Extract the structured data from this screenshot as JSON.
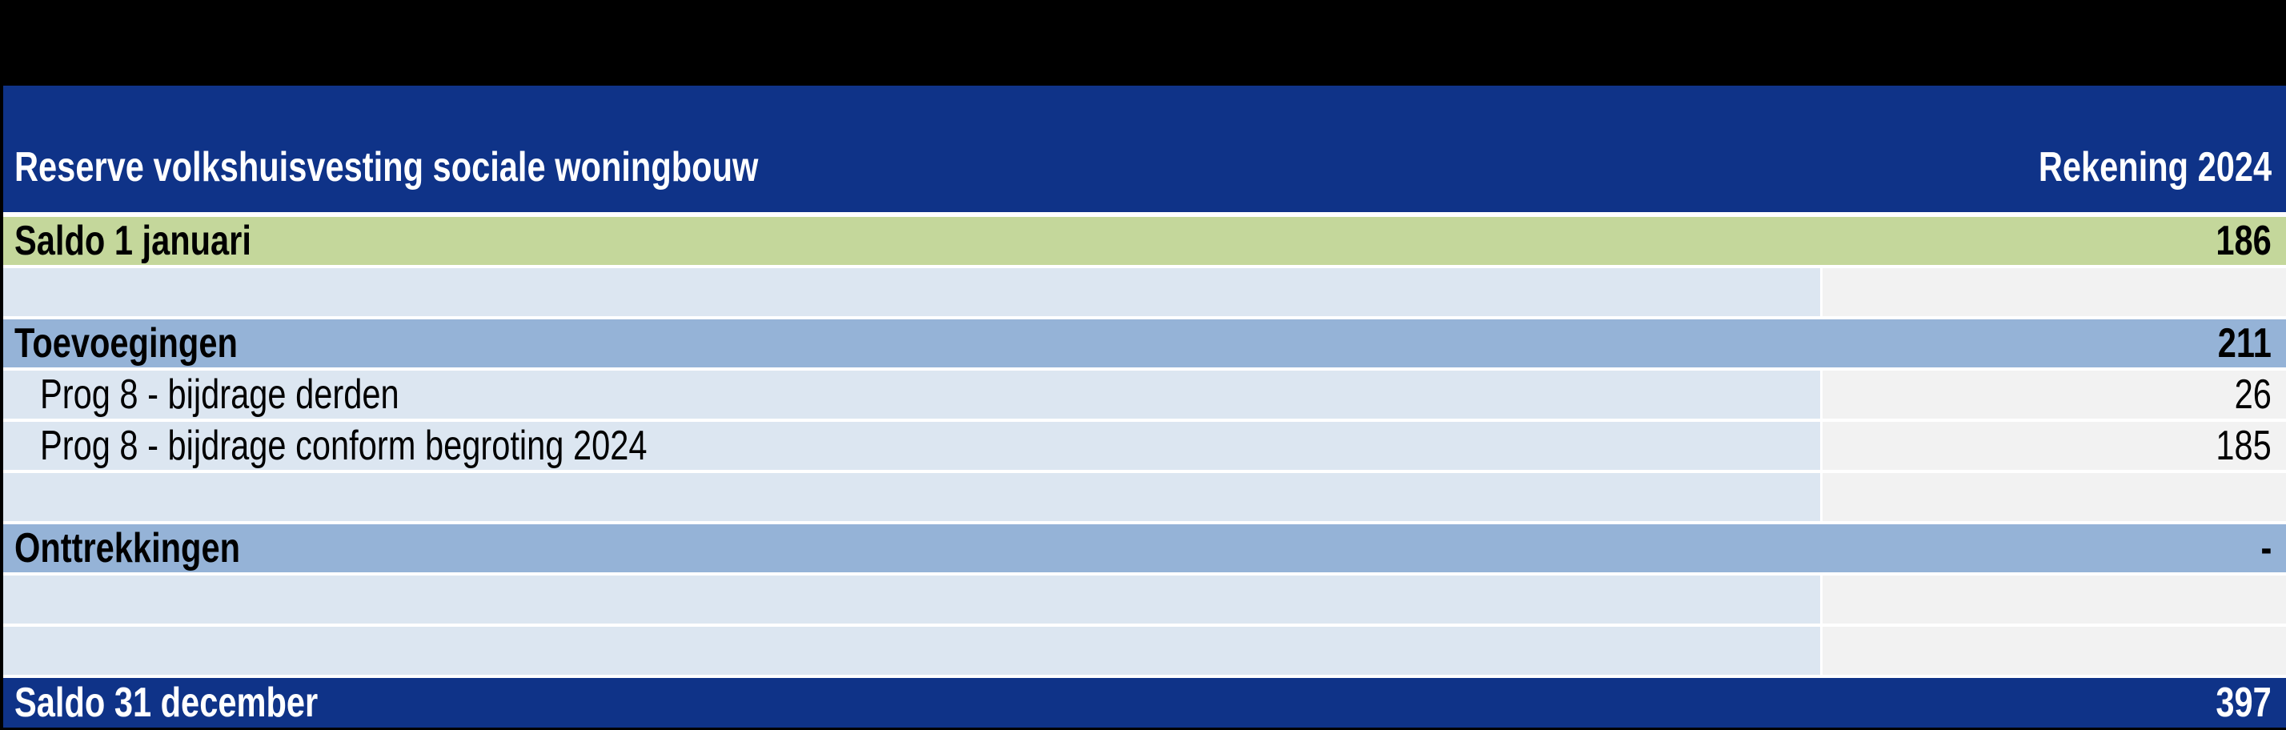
{
  "table": {
    "title": "Reserve volkshuisvesting sociale woningbouw",
    "column_header": "Rekening 2024",
    "rows": [
      {
        "label": "Saldo 1 januari",
        "value": "186",
        "type": "opening"
      },
      {
        "label": "",
        "value": "",
        "type": "detail"
      },
      {
        "label": "Toevoegingen",
        "value": "211",
        "type": "section"
      },
      {
        "label": "Prog 8 - bijdrage derden",
        "value": "26",
        "type": "detail"
      },
      {
        "label": "Prog 8 - bijdrage conform begroting 2024",
        "value": "185",
        "type": "detail"
      },
      {
        "label": "",
        "value": "",
        "type": "detail"
      },
      {
        "label": "Onttrekkingen",
        "value": "-",
        "type": "section"
      },
      {
        "label": "",
        "value": "",
        "type": "detail"
      },
      {
        "label": "",
        "value": "",
        "type": "detail"
      },
      {
        "label": "Saldo 31 december",
        "value": "397",
        "type": "closing"
      }
    ],
    "colors": {
      "header_bg": "#0F3388",
      "closing_bg": "#0F3388",
      "opening_bg": "#C4D79B",
      "section_bg": "#95B3D7",
      "detail_label_bg": "#DCE6F1",
      "detail_value_bg": "#F2F2F2",
      "header_text": "#FFFFFF",
      "body_text": "#000000",
      "frame": "#000000"
    }
  }
}
